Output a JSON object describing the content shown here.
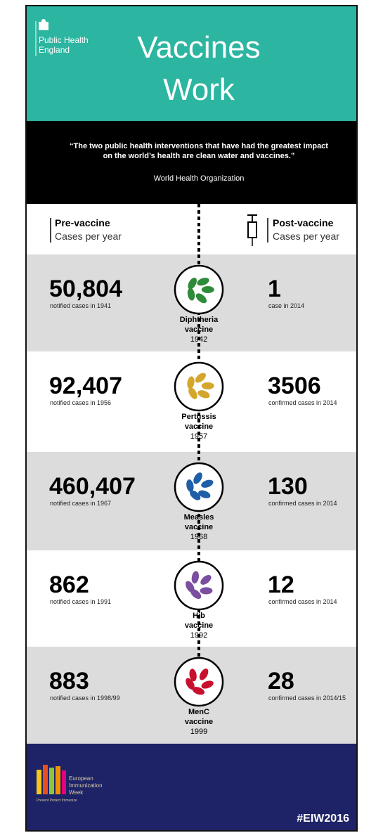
{
  "header": {
    "logo": [
      "Public Health",
      "England"
    ],
    "title": [
      "Vaccines",
      "Work"
    ]
  },
  "quote": {
    "text": [
      "“The two public health interventions that have had the greatest impact",
      "on the world’s health are clean water and vaccines.”"
    ],
    "source": "World Health Organization"
  },
  "columns": {
    "pre": {
      "title": "Pre-vaccine",
      "subtitle": "Cases per year"
    },
    "post": {
      "title": "Post-vaccine",
      "subtitle": "Cases per year"
    }
  },
  "rows": [
    {
      "pre_value": "50,804",
      "pre_note": "notified cases in 1941",
      "vaccine": [
        "Diphtheria",
        "vaccine",
        "1942"
      ],
      "post_value": "1",
      "post_note": "case in 2014"
    },
    {
      "pre_value": "92,407",
      "pre_note": "notified cases in 1956",
      "vaccine": [
        "Pertussis",
        "vaccine",
        "1957"
      ],
      "post_value": "3506",
      "post_note": "confirmed cases in 2014"
    },
    {
      "pre_value": "460,407",
      "pre_note": "notified cases in 1967",
      "vaccine": [
        "Measles",
        "vaccine",
        "1968"
      ],
      "post_value": "130",
      "post_note": "confirmed cases in 2014"
    },
    {
      "pre_value": "862",
      "pre_note": "notified cases in 1991",
      "vaccine": [
        "Hib",
        "vaccine",
        "1992"
      ],
      "post_value": "12",
      "post_note": "confirmed cases in 2014"
    },
    {
      "pre_value": "883",
      "pre_note": "notified cases in 1998/99",
      "vaccine": [
        "MenC",
        "vaccine",
        "1999"
      ],
      "post_value": "28",
      "post_note": "confirmed cases in 2014/15"
    }
  ],
  "footer": {
    "logo": [
      "European",
      "Immunization",
      "Week"
    ],
    "tagline": "Prevent Protect Immunize",
    "hashtag": "#EIW2016"
  }
}
